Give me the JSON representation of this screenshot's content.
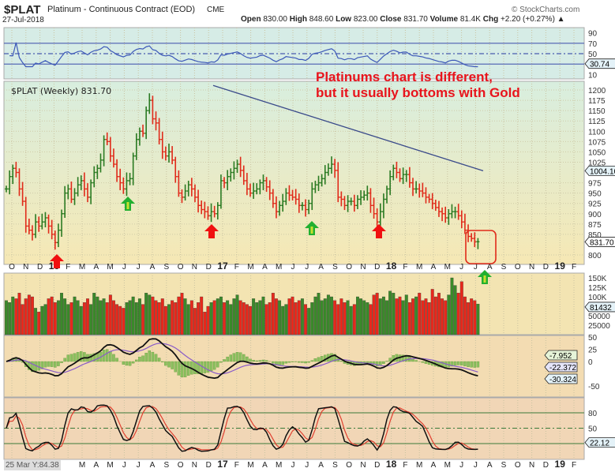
{
  "header": {
    "symbol": "$PLAT",
    "name": "Platinum - Continuous Contract (EOD)",
    "exchange": "CME",
    "date": "27-Jul-2018",
    "source": "© StockCharts.com",
    "open_label": "Open",
    "open": "830.00",
    "high_label": "High",
    "high": "848.60",
    "low_label": "Low",
    "low": "823.00",
    "close_label": "Close",
    "close": "831.70",
    "volume_label": "Volume",
    "volume": "81.4K",
    "chg_label": "Chg",
    "chg": "+2.20 (+0.27%)"
  },
  "annotation": {
    "line1": "Platinums chart is different,",
    "line2": "but it usually bottoms with Gold",
    "color": "#e8141c"
  },
  "price_legend": "$PLAT (Weekly) 831.70",
  "cursor_readout": "25 Mar Y:84.38",
  "colors": {
    "up": "#2a7a22",
    "down": "#e02a1a",
    "trendline": "#3a4a8a",
    "rsi": "#3c58b8",
    "macd": "#111111",
    "signal": "#8a5cc8",
    "hist": "#8cc060",
    "stoch_k": "#111111",
    "stoch_d": "#e04030",
    "arrow_red": "#f01010",
    "arrow_green": "#22b030"
  },
  "chart_data": [
    {
      "type": "line",
      "panel": "RSI",
      "ticks": [
        "90",
        "70",
        "50",
        "10"
      ],
      "levels": [
        70,
        50,
        30
      ],
      "last_label": "30.74",
      "ylim": [
        0,
        100
      ]
    },
    {
      "type": "bar",
      "panel": "price",
      "style": "ohlc-bar",
      "frequency": "weekly",
      "start": "Oct 2015",
      "end": "27-Jul-2018",
      "closes": [
        960,
        990,
        1010,
        1000,
        960,
        930,
        870,
        860,
        850,
        880,
        870,
        880,
        890,
        870,
        850,
        830,
        860,
        900,
        950,
        960,
        935,
        950,
        970,
        980,
        960,
        940,
        975,
        1000,
        1010,
        1030,
        1080,
        1075,
        1040,
        1020,
        990,
        975,
        960,
        980,
        985,
        1040,
        1080,
        1100,
        1095,
        1150,
        1175,
        1130,
        1120,
        1080,
        1050,
        1040,
        1050,
        1030,
        990,
        950,
        940,
        955,
        970,
        960,
        940,
        920,
        910,
        905,
        895,
        905,
        900,
        920,
        980,
        975,
        990,
        1000,
        1010,
        1020,
        1005,
        980,
        960,
        950,
        955,
        960,
        975,
        980,
        965,
        950,
        925,
        905,
        920,
        930,
        950,
        945,
        940,
        935,
        920,
        920,
        910,
        925,
        960,
        970,
        975,
        985,
        1000,
        1010,
        1020,
        1005,
        940,
        935,
        920,
        930,
        930,
        920,
        935,
        940,
        945,
        950,
        920,
        900,
        880,
        905,
        935,
        960,
        990,
        1010,
        1000,
        985,
        995,
        995,
        975,
        960,
        960,
        955,
        950,
        940,
        935,
        925,
        915,
        905,
        900,
        890,
        900,
        905,
        905,
        895,
        880,
        860,
        845,
        840,
        832,
        832
      ],
      "ticks": [
        "1200",
        "1175",
        "1150",
        "1125",
        "1100",
        "1075",
        "1050",
        "1025",
        "975",
        "950",
        "925",
        "900",
        "875",
        "850",
        "800"
      ],
      "ylim": [
        790,
        1210
      ],
      "trendline": {
        "from": {
          "date": "Dec 2016",
          "value": 1211
        },
        "to": {
          "date": "Jul 2018",
          "value": 1004
        },
        "label": "1004.10"
      },
      "last_label": "831.70",
      "markers": [
        {
          "type": "red-up-arrow",
          "date": "Jan 2016"
        },
        {
          "type": "green-up-arrow",
          "date": "Jun 2016"
        },
        {
          "type": "red-up-arrow",
          "date": "Dec 2016"
        },
        {
          "type": "green-up-arrow",
          "date": "Jul 2017"
        },
        {
          "type": "red-up-arrow",
          "date": "Dec 2017"
        },
        {
          "type": "green-up-arrow",
          "date": "Aug 2018"
        },
        {
          "type": "red-box",
          "date": "Jul 2018"
        }
      ]
    },
    {
      "type": "bar",
      "panel": "volume",
      "ticks": [
        "150K",
        "125K",
        "100K",
        "50000",
        "25000"
      ],
      "last_label": "81432",
      "ylim": [
        0,
        160000
      ],
      "values": [
        90,
        85,
        100,
        95,
        110,
        80,
        95,
        105,
        100,
        70,
        60,
        75,
        80,
        95,
        100,
        85,
        90,
        110,
        95,
        80,
        85,
        100,
        90,
        75,
        85,
        95,
        80,
        110,
        100,
        90,
        95,
        85,
        105,
        90,
        80,
        75,
        70,
        85,
        90,
        100,
        85,
        95,
        80,
        110,
        105,
        100,
        90,
        85,
        95,
        75,
        80,
        90,
        85,
        100,
        110,
        95,
        80,
        90,
        70,
        85,
        100,
        60,
        75,
        85,
        90,
        95,
        100,
        85,
        90,
        80,
        95,
        105,
        90,
        85,
        80,
        75,
        95,
        85,
        90,
        100,
        80,
        85,
        110,
        95,
        90,
        75,
        80,
        95,
        100,
        85,
        90,
        95,
        80,
        70,
        85,
        100,
        110,
        90,
        95,
        105,
        100,
        90,
        80,
        95,
        85,
        90,
        75,
        80,
        100,
        95,
        90,
        85,
        80,
        105,
        110,
        95,
        100,
        90,
        115,
        110,
        95,
        100,
        90,
        105,
        85,
        95,
        100,
        110,
        90,
        95,
        85,
        120,
        100,
        110,
        95,
        90,
        105,
        150,
        130,
        110,
        140,
        100,
        85,
        95,
        90,
        81
      ]
    },
    {
      "type": "line",
      "panel": "MACD",
      "ticks": [
        "50",
        "25",
        "0",
        "-50"
      ],
      "labels": [
        "-7.952",
        "-22.372",
        "-30.324"
      ],
      "ylim": [
        -60,
        55
      ]
    },
    {
      "type": "line",
      "panel": "Stochastics",
      "ticks": [
        "80",
        "50"
      ],
      "levels": [
        80,
        50,
        20
      ],
      "last_label": "22.12",
      "ylim": [
        0,
        100
      ]
    }
  ],
  "x_axis": [
    "O",
    "N",
    "D",
    "16",
    "F",
    "M",
    "A",
    "M",
    "J",
    "J",
    "A",
    "S",
    "O",
    "N",
    "D",
    "17",
    "F",
    "M",
    "A",
    "M",
    "J",
    "J",
    "A",
    "S",
    "O",
    "N",
    "D",
    "18",
    "F",
    "M",
    "A",
    "M",
    "J",
    "J",
    "A",
    "S",
    "O",
    "N",
    "D",
    "19",
    "F"
  ]
}
